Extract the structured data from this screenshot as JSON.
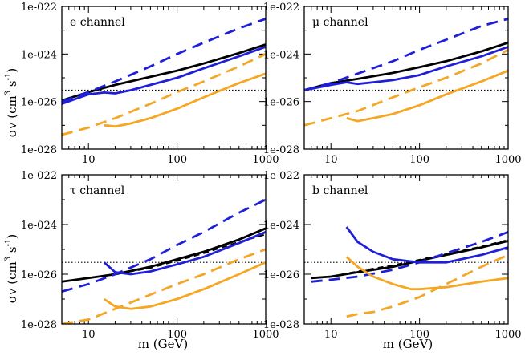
{
  "figure": {
    "shared_ylabel": {
      "main": "σv (cm",
      "sup1": "3",
      "mid": " s",
      "sup2": "-1",
      "close": ")"
    },
    "shared_xlabel": "m (GeV)",
    "x_ticks": [
      "10",
      "100",
      "1000"
    ],
    "y_ticks": [
      "1e-022",
      "1e-024",
      "1e-026",
      "1e-028"
    ],
    "colors": {
      "black": "#000000",
      "blue": "#1f1fd8",
      "orange": "#f5a623"
    }
  },
  "chart_data": [
    {
      "type": "line",
      "title": "e channel",
      "xscale": "log",
      "yscale": "log",
      "xlim": [
        5,
        1000
      ],
      "ylim": [
        1e-28,
        1e-22
      ],
      "reference_line": {
        "y": 3e-26,
        "style": "dotted"
      },
      "series": [
        {
          "name": "black-solid",
          "color": "#000000",
          "dash": "solid",
          "x": [
            5,
            10,
            20,
            50,
            100,
            200,
            500,
            1000
          ],
          "y": [
            1.1e-26,
            2.5e-26,
            5e-26,
            1.1e-25,
            2e-25,
            4e-25,
            1.1e-24,
            2.5e-24
          ]
        },
        {
          "name": "black-dashed",
          "color": "#000000",
          "dash": "dashed",
          "x": [
            5,
            10,
            20,
            50,
            100,
            200,
            500,
            1000
          ],
          "y": [
            1.1e-26,
            2.5e-26,
            5e-26,
            1.1e-25,
            2e-25,
            4e-25,
            1.1e-24,
            2.5e-24
          ]
        },
        {
          "name": "blue-solid",
          "color": "#1f1fd8",
          "dash": "solid",
          "x": [
            5,
            10,
            15,
            20,
            30,
            50,
            100,
            200,
            500,
            1000
          ],
          "y": [
            8e-27,
            2e-26,
            2.4e-26,
            2.2e-26,
            3e-26,
            5e-26,
            1e-25,
            2.5e-25,
            8e-25,
            2e-24
          ]
        },
        {
          "name": "blue-dashed",
          "color": "#1f1fd8",
          "dash": "dashed",
          "x": [
            5,
            10,
            20,
            50,
            100,
            200,
            500,
            1000
          ],
          "y": [
            1e-26,
            2.5e-26,
            7e-26,
            3e-25,
            1e-24,
            3e-24,
            1.2e-23,
            3e-23
          ]
        },
        {
          "name": "orange-solid",
          "color": "#f5a623",
          "dash": "solid",
          "x": [
            15,
            20,
            30,
            50,
            100,
            200,
            500,
            1000
          ],
          "y": [
            1e-27,
            9e-28,
            1.2e-27,
            2e-27,
            5e-27,
            1.5e-26,
            6e-26,
            1.5e-25
          ]
        },
        {
          "name": "orange-dashed",
          "color": "#f5a623",
          "dash": "dashed",
          "x": [
            5,
            10,
            20,
            50,
            100,
            200,
            500,
            1000
          ],
          "y": [
            4e-28,
            8e-28,
            2e-27,
            8e-27,
            2.5e-26,
            7e-26,
            3e-25,
            1e-24
          ]
        }
      ]
    },
    {
      "type": "line",
      "title": "μ channel",
      "xscale": "log",
      "yscale": "log",
      "xlim": [
        5,
        1000
      ],
      "ylim": [
        1e-28,
        1e-22
      ],
      "reference_line": {
        "y": 3e-26,
        "style": "dotted"
      },
      "series": [
        {
          "name": "black-solid",
          "color": "#000000",
          "dash": "solid",
          "x": [
            5,
            10,
            20,
            50,
            100,
            200,
            500,
            1000
          ],
          "y": [
            3e-26,
            6e-26,
            9e-26,
            1.6e-25,
            2.8e-25,
            5e-25,
            1.3e-24,
            3e-24
          ]
        },
        {
          "name": "black-dashed",
          "color": "#000000",
          "dash": "dashed",
          "x": [
            5,
            10,
            20,
            50,
            100,
            200,
            500,
            1000
          ],
          "y": [
            3e-26,
            6e-26,
            9e-26,
            1.6e-25,
            2.8e-25,
            5e-25,
            1.3e-24,
            3e-24
          ]
        },
        {
          "name": "blue-solid",
          "color": "#1f1fd8",
          "dash": "solid",
          "x": [
            5,
            10,
            15,
            20,
            30,
            50,
            100,
            200,
            500,
            1000
          ],
          "y": [
            3e-26,
            5e-26,
            6.5e-26,
            5.5e-26,
            6.5e-26,
            8e-26,
            1.3e-25,
            3e-25,
            8e-25,
            2e-24
          ]
        },
        {
          "name": "blue-dashed",
          "color": "#1f1fd8",
          "dash": "dashed",
          "x": [
            5,
            10,
            20,
            50,
            100,
            200,
            500,
            1000
          ],
          "y": [
            3e-26,
            6e-26,
            1.5e-25,
            5e-25,
            1.5e-24,
            4e-24,
            1.5e-23,
            3e-23
          ]
        },
        {
          "name": "orange-solid",
          "color": "#f5a623",
          "dash": "solid",
          "x": [
            15,
            20,
            30,
            50,
            100,
            200,
            500,
            1000
          ],
          "y": [
            2e-27,
            1.5e-27,
            2e-27,
            3e-27,
            7e-27,
            2e-26,
            7e-26,
            2e-25
          ]
        },
        {
          "name": "orange-dashed",
          "color": "#f5a623",
          "dash": "dashed",
          "x": [
            5,
            10,
            20,
            50,
            100,
            200,
            500,
            1000
          ],
          "y": [
            1e-27,
            2e-27,
            4e-27,
            1.5e-26,
            4e-26,
            1e-25,
            4e-25,
            1.5e-24
          ]
        }
      ]
    },
    {
      "type": "line",
      "title": "τ channel",
      "xscale": "log",
      "yscale": "log",
      "xlim": [
        5,
        1000
      ],
      "ylim": [
        1e-28,
        1e-22
      ],
      "reference_line": {
        "y": 3e-26,
        "style": "dotted"
      },
      "series": [
        {
          "name": "black-solid",
          "color": "#000000",
          "dash": "solid",
          "x": [
            5,
            10,
            20,
            50,
            100,
            200,
            500,
            1000
          ],
          "y": [
            5e-27,
            7e-27,
            1e-26,
            2e-26,
            4e-26,
            8e-26,
            2.5e-25,
            7e-25
          ]
        },
        {
          "name": "black-dashed",
          "color": "#000000",
          "dash": "dashed",
          "x": [
            5,
            10,
            20,
            50,
            100,
            200,
            500,
            1000
          ],
          "y": [
            5e-27,
            7e-27,
            1e-26,
            1.8e-26,
            3.5e-26,
            7e-26,
            2e-25,
            4e-25
          ]
        },
        {
          "name": "blue-solid",
          "color": "#1f1fd8",
          "dash": "solid",
          "x": [
            15,
            20,
            30,
            50,
            100,
            200,
            500,
            1000
          ],
          "y": [
            3e-26,
            1.2e-26,
            1e-26,
            1.3e-26,
            2.5e-26,
            5e-26,
            1.8e-25,
            5e-25
          ]
        },
        {
          "name": "blue-dashed",
          "color": "#1f1fd8",
          "dash": "dashed",
          "x": [
            5,
            10,
            20,
            50,
            100,
            200,
            500,
            1000
          ],
          "y": [
            2e-27,
            4e-27,
            1e-26,
            4e-26,
            1.5e-25,
            5e-25,
            3e-24,
            1e-23
          ]
        },
        {
          "name": "orange-solid",
          "color": "#f5a623",
          "dash": "solid",
          "x": [
            15,
            20,
            30,
            50,
            100,
            200,
            500,
            1000
          ],
          "y": [
            1e-27,
            5e-28,
            4e-28,
            5e-28,
            1e-27,
            2.5e-27,
            1e-26,
            3e-26
          ]
        },
        {
          "name": "orange-dashed",
          "color": "#f5a623",
          "dash": "dashed",
          "x": [
            5,
            10,
            20,
            50,
            100,
            200,
            500,
            1000
          ],
          "y": [
            1e-28,
            1.5e-28,
            4e-28,
            1.5e-27,
            4e-27,
            1e-26,
            4e-26,
            1e-25
          ]
        }
      ]
    },
    {
      "type": "line",
      "title": "b channel",
      "xscale": "log",
      "yscale": "log",
      "xlim": [
        5,
        1000
      ],
      "ylim": [
        1e-28,
        1e-22
      ],
      "reference_line": {
        "y": 3e-26,
        "style": "dotted"
      },
      "series": [
        {
          "name": "black-solid",
          "color": "#000000",
          "dash": "solid",
          "x": [
            6,
            10,
            20,
            50,
            100,
            200,
            500,
            1000
          ],
          "y": [
            7e-27,
            8e-27,
            1.2e-26,
            2e-26,
            3.5e-26,
            6e-26,
            1.2e-25,
            2.2e-25
          ]
        },
        {
          "name": "black-dashed",
          "color": "#000000",
          "dash": "dashed",
          "x": [
            6,
            10,
            20,
            50,
            100,
            200,
            500,
            1000
          ],
          "y": [
            7e-27,
            8e-27,
            1.3e-26,
            2.3e-26,
            3.8e-26,
            6.5e-26,
            1.3e-25,
            2.4e-25
          ]
        },
        {
          "name": "blue-solid",
          "color": "#1f1fd8",
          "dash": "solid",
          "x": [
            15,
            20,
            30,
            50,
            100,
            200,
            500,
            1000
          ],
          "y": [
            8e-25,
            2e-25,
            8e-26,
            4e-26,
            3e-26,
            3e-26,
            6e-26,
            1.2e-25
          ]
        },
        {
          "name": "blue-dashed",
          "color": "#1f1fd8",
          "dash": "dashed",
          "x": [
            6,
            10,
            20,
            50,
            100,
            200,
            500,
            1000
          ],
          "y": [
            5e-27,
            6e-27,
            8e-27,
            1.5e-26,
            3e-26,
            7e-26,
            2e-25,
            5e-25
          ]
        },
        {
          "name": "orange-solid",
          "color": "#f5a623",
          "dash": "solid",
          "x": [
            15,
            20,
            30,
            50,
            80,
            100,
            200,
            500,
            1000
          ],
          "y": [
            5e-26,
            2e-26,
            8e-27,
            4e-27,
            2.5e-27,
            2.5e-27,
            3e-27,
            5e-27,
            7e-27
          ]
        },
        {
          "name": "orange-dashed",
          "color": "#f5a623",
          "dash": "dashed",
          "x": [
            15,
            20,
            30,
            50,
            100,
            200,
            500,
            1000
          ],
          "y": [
            2e-28,
            2.5e-28,
            3e-28,
            5e-28,
            1.2e-27,
            4e-27,
            2e-26,
            6e-26
          ]
        }
      ]
    }
  ]
}
